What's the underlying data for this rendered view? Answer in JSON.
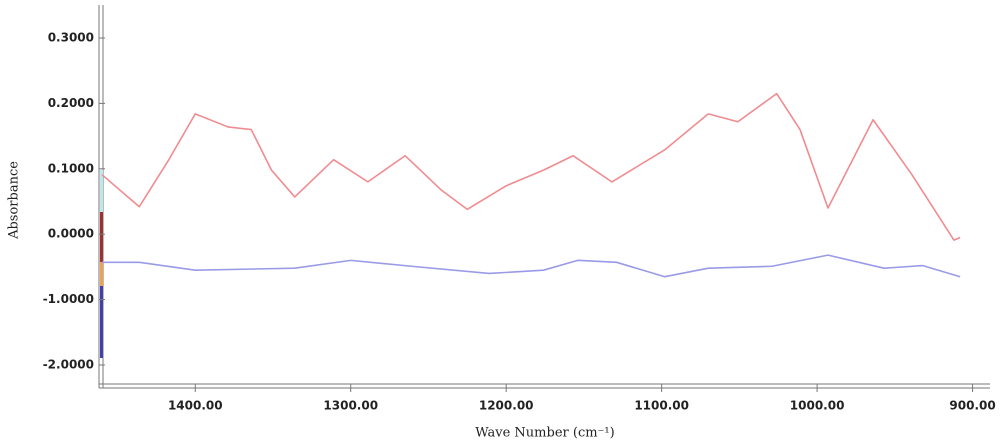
{
  "chart_data": {
    "type": "line",
    "y_label": "Absorbance",
    "x_label": "Wave Number (cm⁻¹)",
    "xlim": [
      1460,
      892
    ],
    "ylim": [
      -2.3,
      0.35
    ],
    "xticks": [
      {
        "value": 1400,
        "label": "1400.00"
      },
      {
        "value": 1300,
        "label": "1300.00"
      },
      {
        "value": 1200,
        "label": "1200.00"
      },
      {
        "value": 1100,
        "label": "1100.00"
      },
      {
        "value": 1000,
        "label": "1000.00"
      },
      {
        "value": 900,
        "label": "900.00"
      }
    ],
    "yticks": [
      {
        "value": 0.3,
        "label": "0.3000"
      },
      {
        "value": 0.2,
        "label": "0.2000"
      },
      {
        "value": 0.1,
        "label": "0.1000"
      },
      {
        "value": 0,
        "label": "0.0000"
      },
      {
        "value": -1,
        "label": "-1.0000"
      },
      {
        "value": -2,
        "label": "-2.0000"
      }
    ],
    "series": [
      {
        "color": "#f08c90",
        "x": [
          1460,
          1436,
          1417,
          1400,
          1379,
          1364,
          1351,
          1336,
          1311,
          1289,
          1265,
          1242,
          1225,
          1200,
          1176,
          1157,
          1132,
          1098,
          1070,
          1051,
          1026,
          1011,
          993,
          964,
          939,
          912,
          908
        ],
        "values": [
          0.091,
          0.042,
          0.114,
          0.184,
          0.164,
          0.16,
          0.098,
          0.057,
          0.114,
          0.08,
          0.12,
          0.068,
          0.038,
          0.074,
          0.098,
          0.12,
          0.08,
          0.129,
          0.184,
          0.172,
          0.215,
          0.16,
          0.04,
          0.175,
          0.091,
          -0.09,
          -0.05
        ]
      },
      {
        "color": "#9a9ae8",
        "x": [
          1460,
          1436,
          1400,
          1336,
          1300,
          1261,
          1211,
          1176,
          1154,
          1129,
          1098,
          1070,
          1029,
          993,
          957,
          932,
          908
        ],
        "values": [
          -0.43,
          -0.43,
          -0.55,
          -0.52,
          -0.4,
          -0.49,
          -0.6,
          -0.55,
          -0.4,
          -0.43,
          -0.65,
          -0.52,
          -0.49,
          -0.32,
          -0.52,
          -0.48,
          -0.65
        ]
      }
    ]
  }
}
